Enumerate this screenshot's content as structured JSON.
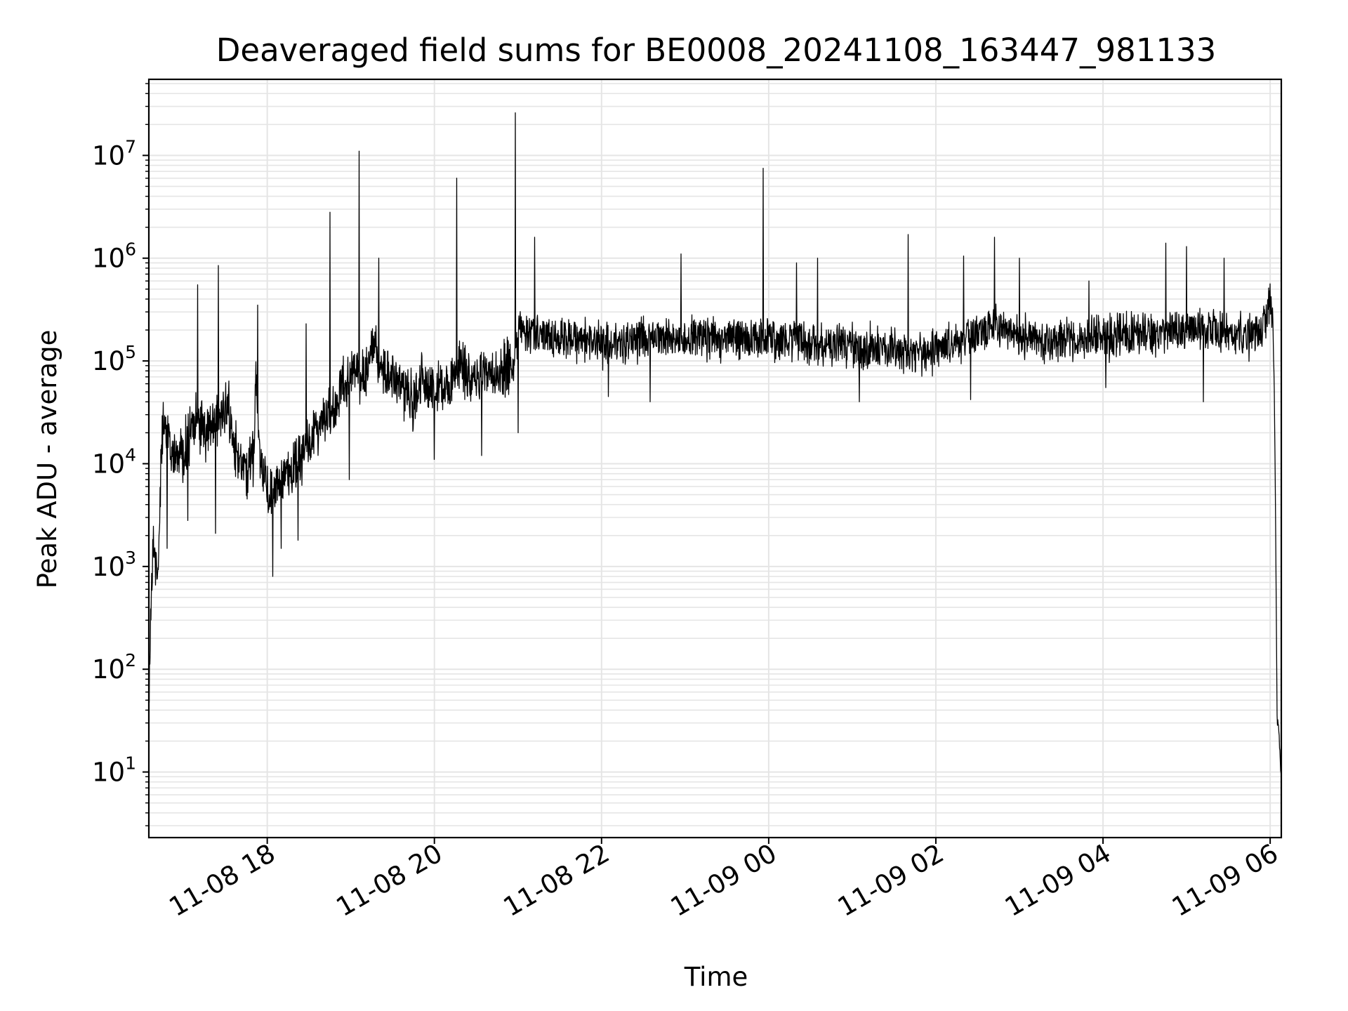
{
  "chart_data": {
    "type": "line",
    "title": "Deaveraged field sums for BE0008_20241108_163447_981133",
    "xlabel": "Time",
    "ylabel": "Peak ADU - average",
    "yscale": "log",
    "ylim": [
      2.3,
      55000000
    ],
    "xlim": [
      "11-08 16:35",
      "11-09 06:08"
    ],
    "grid": "major and minor",
    "line_color": "#000000",
    "grid_color": "#e5e5e5",
    "x_ticks": [
      {
        "value": "11-08 18:00",
        "label": "11-08 18"
      },
      {
        "value": "11-08 20:00",
        "label": "11-08 20"
      },
      {
        "value": "11-08 22:00",
        "label": "11-08 22"
      },
      {
        "value": "11-09 00:00",
        "label": "11-09 00"
      },
      {
        "value": "11-09 02:00",
        "label": "11-09 02"
      },
      {
        "value": "11-09 04:00",
        "label": "11-09 04"
      },
      {
        "value": "11-09 06:00",
        "label": "11-09 06"
      }
    ],
    "y_ticks": [
      {
        "value": 10,
        "base": "10",
        "exp": "1"
      },
      {
        "value": 100,
        "base": "10",
        "exp": "2"
      },
      {
        "value": 1000,
        "base": "10",
        "exp": "3"
      },
      {
        "value": 10000,
        "base": "10",
        "exp": "4"
      },
      {
        "value": 100000,
        "base": "10",
        "exp": "5"
      },
      {
        "value": 1000000,
        "base": "10",
        "exp": "6"
      },
      {
        "value": 10000000,
        "base": "10",
        "exp": "7"
      }
    ],
    "series": [
      {
        "x": [
          "11-08 16:35",
          "11-08 16:38",
          "11-08 16:41",
          "11-08 16:45",
          "11-08 16:50",
          "11-08 17:00",
          "11-08 17:10",
          "11-08 17:15",
          "11-08 17:20",
          "11-08 17:25",
          "11-08 17:30",
          "11-08 17:32",
          "11-08 17:35",
          "11-08 17:45",
          "11-08 17:50",
          "11-08 17:52",
          "11-08 17:55",
          "11-08 18:00",
          "11-08 18:03",
          "11-08 18:10",
          "11-08 18:20",
          "11-08 18:30",
          "11-08 18:32",
          "11-08 18:40",
          "11-08 18:45",
          "11-08 18:48",
          "11-08 18:50",
          "11-08 19:00",
          "11-08 19:10",
          "11-08 19:15",
          "11-08 19:20",
          "11-08 19:25",
          "11-08 19:30",
          "11-08 19:40",
          "11-08 19:45",
          "11-08 19:50",
          "11-08 20:00",
          "11-08 20:10",
          "11-08 20:15",
          "11-08 20:17",
          "11-08 20:20",
          "11-08 20:30",
          "11-08 20:40",
          "11-08 20:50",
          "11-08 20:55",
          "11-08 20:58",
          "11-08 21:00",
          "11-08 21:10",
          "11-08 21:15",
          "11-08 21:30",
          "11-08 22:00",
          "11-08 22:30",
          "11-08 23:00",
          "11-08 23:30",
          "11-08 23:58",
          "11-09 00:30",
          "11-09 01:00",
          "11-09 01:30",
          "11-09 01:40",
          "11-09 01:45",
          "11-09 02:00",
          "11-09 02:30",
          "11-09 02:42",
          "11-09 03:00",
          "11-09 03:30",
          "11-09 04:00",
          "11-09 04:30",
          "11-09 04:50",
          "11-09 05:00",
          "11-09 05:10",
          "11-09 05:30",
          "11-09 05:50",
          "11-09 05:58",
          "11-09 06:00",
          "11-09 06:02",
          "11-09 06:03",
          "11-09 06:04",
          "11-09 06:05",
          "11-09 06:06",
          "11-09 06:07",
          "11-09 06:08"
        ],
        "y": [
          60,
          2000,
          700,
          25000,
          15000,
          12000,
          30000,
          20000,
          25000,
          30000,
          35000,
          40000,
          15000,
          8000,
          12000,
          80000,
          10000,
          6000,
          5000,
          7000,
          9000,
          15000,
          20000,
          25000,
          30000,
          35000,
          40000,
          80000,
          70000,
          150000,
          100000,
          80000,
          70000,
          50000,
          40000,
          60000,
          55000,
          60000,
          80000,
          90000,
          85000,
          70000,
          75000,
          80000,
          90000,
          85000,
          200000,
          180000,
          190000,
          170000,
          150000,
          160000,
          170000,
          165000,
          160000,
          150000,
          140000,
          130000,
          120000,
          110000,
          125000,
          180000,
          220000,
          170000,
          160000,
          175000,
          180000,
          190000,
          200000,
          210000,
          180000,
          170000,
          300000,
          350000,
          200000,
          50000,
          2000,
          30,
          30,
          15,
          8
        ]
      }
    ],
    "spikes": [
      {
        "x": "11-08 17:10",
        "y": 550000
      },
      {
        "x": "11-08 17:25",
        "y": 850000
      },
      {
        "x": "11-08 17:53",
        "y": 350000
      },
      {
        "x": "11-08 18:28",
        "y": 230000
      },
      {
        "x": "11-08 18:45",
        "y": 2800000
      },
      {
        "x": "11-08 19:06",
        "y": 11000000
      },
      {
        "x": "11-08 19:20",
        "y": 1000000
      },
      {
        "x": "11-08 20:16",
        "y": 6000000
      },
      {
        "x": "11-08 20:58",
        "y": 26000000
      },
      {
        "x": "11-08 21:12",
        "y": 1600000
      },
      {
        "x": "11-08 22:57",
        "y": 1100000
      },
      {
        "x": "11-08 23:56",
        "y": 7500000
      },
      {
        "x": "11-09 00:20",
        "y": 900000
      },
      {
        "x": "11-09 00:35",
        "y": 1000000
      },
      {
        "x": "11-09 01:40",
        "y": 1700000
      },
      {
        "x": "11-09 02:20",
        "y": 1050000
      },
      {
        "x": "11-09 02:42",
        "y": 1600000
      },
      {
        "x": "11-09 03:00",
        "y": 1000000
      },
      {
        "x": "11-09 03:50",
        "y": 600000
      },
      {
        "x": "11-09 04:45",
        "y": 1400000
      },
      {
        "x": "11-09 05:00",
        "y": 1300000
      },
      {
        "x": "11-09 05:27",
        "y": 1000000
      }
    ],
    "dips": [
      {
        "x": "11-08 16:48",
        "y": 1500
      },
      {
        "x": "11-08 17:03",
        "y": 2800
      },
      {
        "x": "11-08 17:23",
        "y": 2100
      },
      {
        "x": "11-08 18:04",
        "y": 800
      },
      {
        "x": "11-08 18:10",
        "y": 1500
      },
      {
        "x": "11-08 18:22",
        "y": 1800
      },
      {
        "x": "11-08 18:59",
        "y": 7000
      },
      {
        "x": "11-08 20:00",
        "y": 11000
      },
      {
        "x": "11-08 20:34",
        "y": 12000
      },
      {
        "x": "11-08 21:00",
        "y": 20000
      },
      {
        "x": "11-08 22:05",
        "y": 45000
      },
      {
        "x": "11-08 22:35",
        "y": 40000
      },
      {
        "x": "11-09 01:05",
        "y": 40000
      },
      {
        "x": "11-09 02:25",
        "y": 42000
      },
      {
        "x": "11-09 04:02",
        "y": 55000
      },
      {
        "x": "11-09 05:12",
        "y": 40000
      }
    ]
  }
}
